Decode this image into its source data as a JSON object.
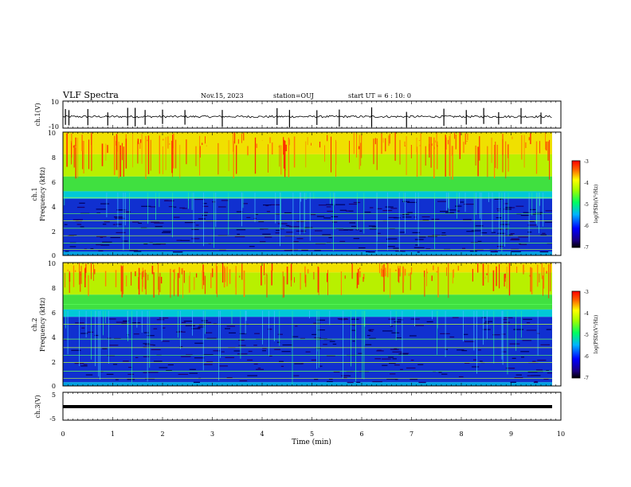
{
  "header": {
    "title": "VLF Spectra",
    "date": "Nov.15, 2023",
    "station": "station=OUJ",
    "start_ut": "start UT =  6 : 10: 0"
  },
  "chart_data": [
    {
      "type": "line",
      "name": "ch1-waveform",
      "ylabel": "ch.1(V)",
      "ylim": [
        -10,
        10
      ],
      "yticks": [
        "10",
        "-10"
      ],
      "xlim": [
        0,
        10
      ],
      "baseline": -1.5,
      "spike_times_min": [
        0.05,
        0.12,
        0.5,
        0.9,
        1.3,
        1.45,
        1.65,
        2.0,
        2.45,
        3.2,
        4.3,
        4.55,
        5.1,
        5.55,
        6.2,
        6.9,
        7.65,
        8.1,
        8.45,
        8.75,
        9.2,
        9.6
      ]
    },
    {
      "type": "heatmap",
      "name": "ch1-spectrogram",
      "ylabel": "ch.1\nFrequency (kHz)",
      "ylim": [
        0,
        10
      ],
      "yticks": [
        "0",
        "2",
        "4",
        "6",
        "8",
        "10"
      ],
      "xlim": [
        0,
        10
      ],
      "colorbar": {
        "label": "log(PSD)(V²/Hz)",
        "range": [
          -7,
          -3
        ],
        "ticks": [
          "-3",
          "-4",
          "-5",
          "-6",
          "-7"
        ]
      },
      "quiet_band_top_khz": 4.6,
      "lines_khz": [
        0.5,
        1.0,
        1.6,
        2.2,
        2.8,
        3.4,
        4.7
      ]
    },
    {
      "type": "heatmap",
      "name": "ch2-spectrogram",
      "ylabel": "ch.2\nFrequency (kHz)",
      "ylim": [
        0,
        10
      ],
      "yticks": [
        "0",
        "2",
        "4",
        "6",
        "8",
        "10"
      ],
      "xlim": [
        0,
        10
      ],
      "colorbar": {
        "label": "log(PSD)(V²/Hz)",
        "range": [
          -7,
          -3
        ],
        "ticks": [
          "-3",
          "-4",
          "-5",
          "-6",
          "-7"
        ]
      },
      "quiet_band_top_khz": 5.6,
      "lines_khz": [
        0.6,
        1.2,
        1.9,
        2.5,
        3.1,
        3.8,
        5.0,
        6.6
      ]
    },
    {
      "type": "line",
      "name": "ch3-waveform",
      "ylabel": "ch.3(V)",
      "ylim": [
        -5,
        5
      ],
      "yticks": [
        "5",
        "-5"
      ],
      "xlim": [
        0,
        10
      ],
      "baseline": 0
    }
  ],
  "xaxis": {
    "label": "Time (min)",
    "ticks": [
      "0",
      "1",
      "2",
      "3",
      "4",
      "5",
      "6",
      "7",
      "8",
      "9",
      "10"
    ]
  }
}
